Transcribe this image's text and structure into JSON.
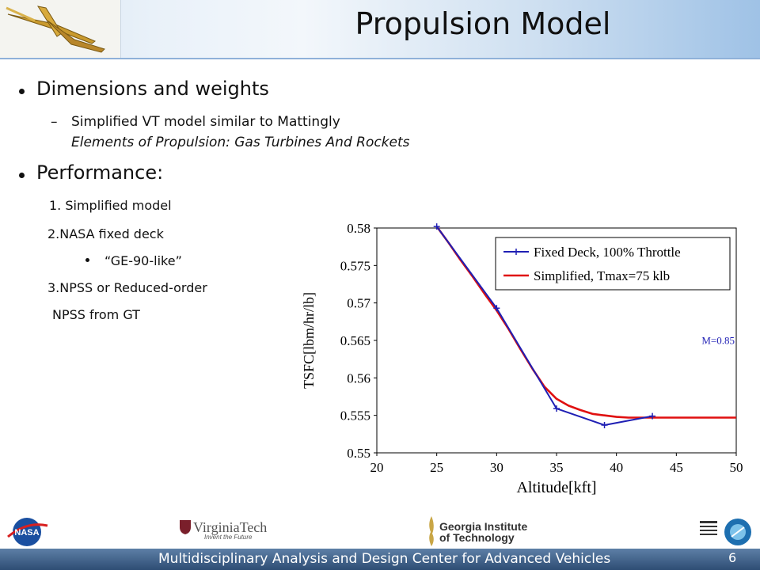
{
  "slide": {
    "title": "Propulsion Model",
    "bullets": {
      "b1": "Dimensions and weights",
      "b1_dash": "–",
      "b1_sub_line1": "Simplified VT model similar to Mattingly",
      "b1_sub_line2": "Elements of Propulsion: Gas Turbines And Rockets",
      "b2": "Performance:",
      "item1": "1. Simplified model",
      "item2": "2.NASA fixed deck",
      "item2_sub": "“GE-90-like”",
      "item3_line1": "3.NPSS or Reduced-order",
      "item3_line2": "NPSS from GT"
    },
    "footer": {
      "text": "Multidisciplinary Analysis and Design Center for Advanced Vehicles",
      "page": "6"
    },
    "logos": {
      "nasa": "nasa-logo",
      "vt_name": "VirginiaTech",
      "vt_tagline": "Invent the Future",
      "gt_line1": "Georgia Institute",
      "gt_line2": "of Technology",
      "nia": "nia-logo"
    }
  },
  "chart_data": {
    "type": "line",
    "xlabel": "Altitude[kft]",
    "ylabel": "TSFC[lbm/hr/lb]",
    "xlim": [
      20,
      50
    ],
    "ylim": [
      0.55,
      0.58
    ],
    "xticks": [
      "20",
      "25",
      "30",
      "35",
      "40",
      "45",
      "50"
    ],
    "yticks": [
      "0.55",
      "0.555",
      "0.56",
      "0.565",
      "0.57",
      "0.575",
      "0.58"
    ],
    "annotation": "M=0.85",
    "legend_position": "top-right",
    "series": [
      {
        "name": "Fixed Deck, 100% Throttle",
        "color": "#1f1fb4",
        "marker": "plus",
        "x": [
          25,
          30,
          35,
          39,
          43
        ],
        "y": [
          0.5802,
          0.5693,
          0.5559,
          0.5537,
          0.5549
        ]
      },
      {
        "name": "Simplified, Tmax=75 klb",
        "color": "#e01010",
        "marker": "none",
        "x": [
          25,
          26,
          27,
          28,
          29,
          30,
          31,
          32,
          33,
          34,
          35,
          36,
          37,
          38,
          39,
          40,
          41,
          42,
          43,
          44,
          45,
          46,
          47,
          48,
          49,
          50
        ],
        "y": [
          0.5802,
          0.578,
          0.5757,
          0.5735,
          0.5712,
          0.569,
          0.5665,
          0.5638,
          0.5612,
          0.5588,
          0.5572,
          0.5563,
          0.5557,
          0.5552,
          0.555,
          0.5548,
          0.5547,
          0.5547,
          0.5547,
          0.5547,
          0.5547,
          0.5547,
          0.5547,
          0.5547,
          0.5547,
          0.5547
        ]
      }
    ]
  }
}
